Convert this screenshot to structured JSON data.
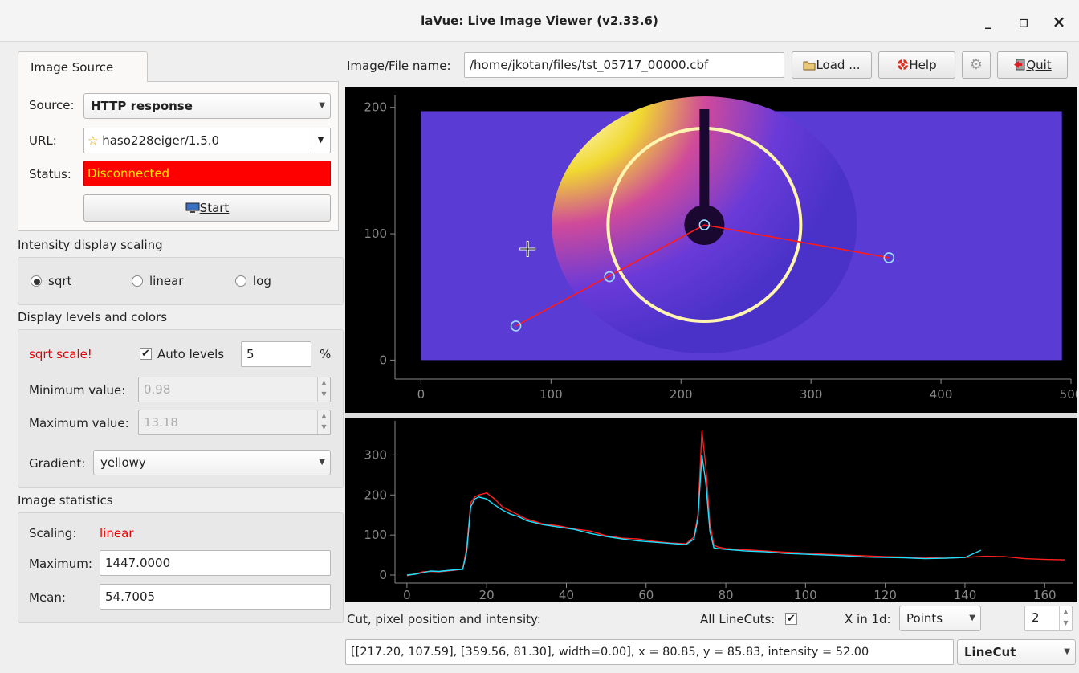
{
  "window": {
    "title": "laVue: Live Image Viewer (v2.33.6)",
    "minimize": "_",
    "maximize": "▫",
    "close": "×"
  },
  "source_tab": {
    "label": "Image Source"
  },
  "source": {
    "source_label": "Source:",
    "source_value": "HTTP response",
    "url_label": "URL:",
    "url_value": "haso228eiger/1.5.0",
    "status_label": "Status:",
    "status_value": "Disconnected",
    "start_label": "Start"
  },
  "scaling": {
    "heading": "Intensity display scaling",
    "options": [
      "sqrt",
      "linear",
      "log"
    ],
    "selected": "sqrt"
  },
  "levels": {
    "heading": "Display levels and colors",
    "warning": "sqrt scale!",
    "auto_levels_label": "Auto levels",
    "auto_levels_checked": true,
    "auto_value": "5",
    "percent": "%",
    "min_label": "Minimum value:",
    "min_value": "0.98",
    "max_label": "Maximum value:",
    "max_value": "13.18",
    "gradient_label": "Gradient:",
    "gradient_value": "yellowy"
  },
  "stats": {
    "heading": "Image statistics",
    "scaling_label": "Scaling:",
    "scaling_value": "linear",
    "maximum_label": "Maximum:",
    "maximum_value": "1447.0000",
    "mean_label": "Mean:",
    "mean_value": "54.7005"
  },
  "toolbar": {
    "file_label": "Image/File name:",
    "file_value": "/home/jkotan/files/tst_05717_00000.cbf",
    "load_label": "Load ...",
    "help_label": "Help",
    "quit_label": "Quit"
  },
  "image_plot": {
    "x_ticks": [
      "0",
      "100",
      "200",
      "300",
      "400",
      "500"
    ],
    "y_ticks": [
      "200",
      "100",
      "0"
    ],
    "x_range": [
      -20,
      500
    ],
    "y_range": [
      -15,
      210
    ],
    "image_extent": {
      "x": [
        0,
        493
      ],
      "y": [
        0,
        197
      ]
    },
    "ring_center": [
      218,
      107
    ],
    "cut_points": [
      [
        73,
        27
      ],
      [
        145,
        66
      ],
      [
        218,
        107
      ],
      [
        287,
        96
      ],
      [
        360,
        81
      ]
    ],
    "colors": {
      "background": "#000000",
      "image": "#5a3cd4",
      "ring": "#fff4b0",
      "cut": "#ff1a1a",
      "handle": "#9fdcff"
    }
  },
  "chart_data": {
    "type": "line",
    "x_ticks": [
      "0",
      "20",
      "40",
      "60",
      "80",
      "100",
      "120",
      "140",
      "160"
    ],
    "y_ticks": [
      "300",
      "200",
      "100",
      "0"
    ],
    "xlim": [
      -3,
      167
    ],
    "ylim": [
      -20,
      385
    ],
    "series": [
      {
        "color": "#ff2020",
        "x": [
          0,
          2,
          4,
          6,
          8,
          10,
          12,
          14,
          15,
          16,
          17,
          18,
          20,
          22,
          24,
          26,
          28,
          30,
          34,
          38,
          42,
          46,
          50,
          54,
          58,
          62,
          66,
          70,
          72,
          73,
          74,
          75,
          76,
          77,
          78,
          80,
          85,
          90,
          95,
          100,
          105,
          110,
          115,
          120,
          125,
          130,
          135,
          140,
          145,
          150,
          155,
          160,
          165
        ],
        "y": [
          -2,
          3,
          8,
          9,
          8,
          10,
          12,
          15,
          70,
          180,
          195,
          200,
          205,
          190,
          170,
          160,
          150,
          140,
          128,
          123,
          115,
          110,
          98,
          92,
          90,
          84,
          80,
          78,
          95,
          150,
          360,
          270,
          130,
          75,
          70,
          66,
          63,
          60,
          57,
          55,
          52,
          50,
          48,
          46,
          45,
          44,
          42,
          44,
          47,
          46,
          41,
          39,
          38
        ]
      },
      {
        "color": "#20e0ff",
        "x": [
          0,
          2,
          4,
          6,
          8,
          10,
          12,
          14,
          15,
          16,
          17,
          18,
          20,
          22,
          24,
          26,
          28,
          30,
          34,
          38,
          42,
          46,
          50,
          54,
          58,
          62,
          66,
          70,
          72,
          73,
          74,
          75,
          76,
          77,
          78,
          80,
          85,
          90,
          95,
          100,
          105,
          110,
          115,
          120,
          125,
          130,
          135,
          140,
          144
        ],
        "y": [
          0,
          2,
          6,
          10,
          9,
          11,
          13,
          14,
          60,
          170,
          190,
          195,
          190,
          175,
          162,
          152,
          146,
          136,
          126,
          120,
          114,
          104,
          96,
          90,
          85,
          82,
          79,
          76,
          90,
          140,
          300,
          230,
          110,
          68,
          66,
          64,
          60,
          58,
          54,
          52,
          50,
          48,
          45,
          44,
          43,
          41,
          42,
          44,
          62
        ]
      }
    ]
  },
  "bottom": {
    "cut_label": "Cut, pixel position and intensity:",
    "all_linecuts_label": "All LineCuts:",
    "all_linecuts_checked": true,
    "x_in_1d_label": "X in 1d:",
    "x_in_1d_value": "Points",
    "spin_value": "2",
    "info_value": "[[217.20, 107.59], [359.56, 81.30], width=0.00], x = 80.85, y = 85.83, intensity = 52.00",
    "tool_value": "LineCut"
  }
}
